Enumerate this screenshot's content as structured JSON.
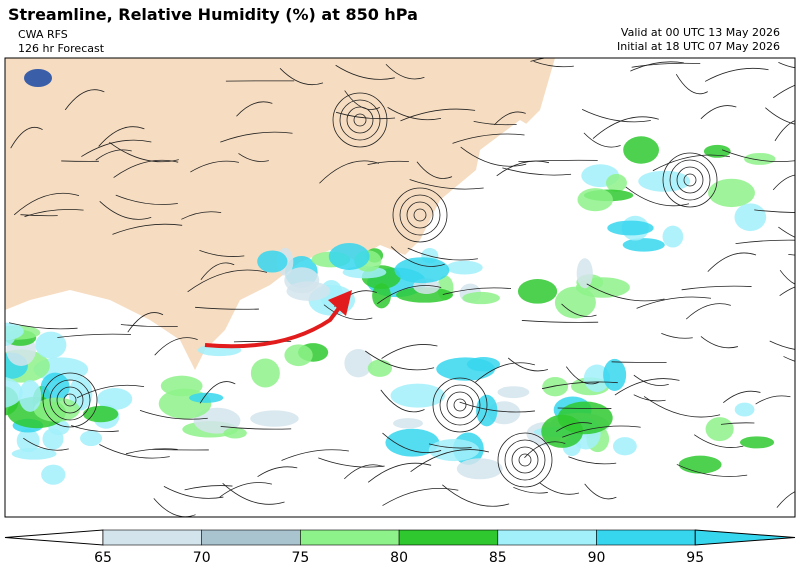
{
  "header": {
    "title": "Streamline, Relative Humidity (%) at 850 hPa",
    "model": "CWA RFS",
    "forecast": "126 hr Forecast",
    "valid": "Valid at 00 UTC 13 May 2026",
    "initial": "Initial at 18 UTC 07 May 2026"
  },
  "colorbar": {
    "labels": [
      65,
      70,
      75,
      80,
      85,
      90,
      95
    ],
    "colors": [
      "#ffffff",
      "#d4e4ec",
      "#a9c3cf",
      "#8ef28a",
      "#2fc92f",
      "#a2f0fa",
      "#36d6ef",
      "#36d6ef"
    ]
  }
}
